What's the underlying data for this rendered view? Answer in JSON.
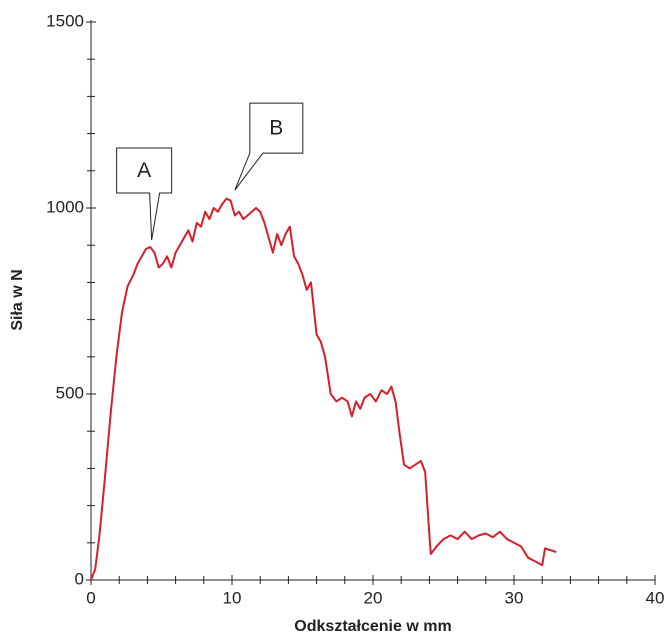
{
  "chart_data": {
    "type": "line",
    "x_label": "Odkształcenie w mm",
    "y_label": "Siła w N",
    "xlim": [
      0,
      40
    ],
    "ylim": [
      0,
      1500
    ],
    "xticks": [
      0,
      10,
      20,
      30,
      40
    ],
    "yticks": [
      0,
      500,
      1000,
      1500
    ],
    "xminorticks": [
      2,
      4,
      6,
      8,
      12,
      14,
      16,
      18,
      22,
      24,
      26,
      28,
      32,
      34,
      36,
      38
    ],
    "yminorticks": [
      100,
      200,
      300,
      400,
      600,
      700,
      800,
      900,
      1100,
      1200,
      1300,
      1400
    ],
    "grid": false,
    "series": [
      {
        "color": "#d71f2b",
        "x": [
          0,
          0.3,
          0.6,
          1.0,
          1.4,
          1.8,
          2.2,
          2.6,
          3.0,
          3.3,
          3.6,
          3.9,
          4.2,
          4.5,
          4.8,
          5.1,
          5.4,
          5.7,
          6.0,
          6.3,
          6.6,
          6.9,
          7.2,
          7.5,
          7.8,
          8.1,
          8.4,
          8.7,
          9.0,
          9.3,
          9.6,
          9.9,
          10.2,
          10.5,
          10.8,
          11.1,
          11.4,
          11.7,
          12.0,
          12.3,
          12.6,
          12.9,
          13.2,
          13.5,
          13.8,
          14.1,
          14.4,
          14.7,
          15.0,
          15.3,
          15.6,
          16.0,
          16.3,
          16.6,
          17.0,
          17.4,
          17.8,
          18.2,
          18.5,
          18.8,
          19.1,
          19.4,
          19.8,
          20.2,
          20.6,
          21.0,
          21.3,
          21.6,
          21.9,
          22.2,
          22.6,
          23.0,
          23.4,
          23.7,
          24.0,
          24.1,
          24.5,
          25.0,
          25.5,
          26.0,
          26.5,
          27.0,
          27.5,
          28.0,
          28.5,
          29.0,
          29.5,
          30.0,
          30.5,
          31.0,
          31.5,
          32.0,
          32.2,
          32.6,
          33.0
        ],
        "values": [
          0,
          30,
          120,
          280,
          450,
          600,
          720,
          790,
          820,
          850,
          870,
          890,
          895,
          880,
          840,
          850,
          870,
          840,
          880,
          900,
          920,
          940,
          910,
          960,
          950,
          990,
          970,
          1000,
          990,
          1010,
          1025,
          1020,
          980,
          990,
          970,
          980,
          990,
          1000,
          990,
          960,
          920,
          880,
          930,
          900,
          930,
          950,
          870,
          850,
          820,
          780,
          800,
          660,
          640,
          600,
          500,
          480,
          490,
          480,
          440,
          480,
          460,
          490,
          500,
          480,
          510,
          500,
          520,
          480,
          390,
          310,
          300,
          310,
          320,
          290,
          120,
          70,
          90,
          110,
          120,
          110,
          130,
          110,
          120,
          125,
          115,
          130,
          110,
          100,
          90,
          60,
          50,
          40,
          85,
          80,
          75
        ]
      }
    ],
    "annotations": [
      {
        "text": "A",
        "x": 4.3,
        "y": 914
      },
      {
        "text": "B",
        "x": 10.2,
        "y": 1048
      }
    ]
  }
}
